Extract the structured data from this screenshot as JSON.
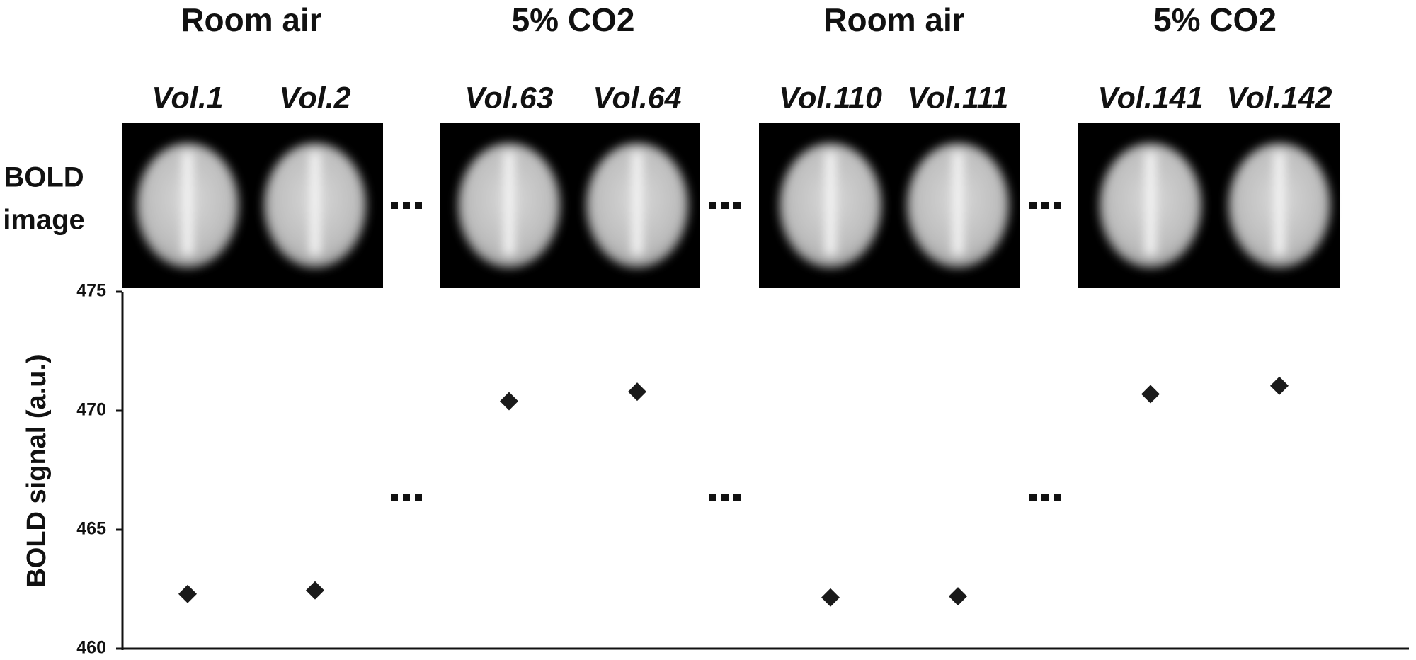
{
  "chart_data": {
    "type": "scatter",
    "groups": [
      "Room air",
      "5% CO2",
      "Room air",
      "5% CO2"
    ],
    "row_label": [
      "BOLD",
      "image"
    ],
    "categories": [
      "Vol.1",
      "Vol.2",
      "Vol.63",
      "Vol.64",
      "Vol.110",
      "Vol.111",
      "Vol.141",
      "Vol.142"
    ],
    "values": [
      462.3,
      462.45,
      470.4,
      470.8,
      462.15,
      462.2,
      470.7,
      471.05
    ],
    "color": "#1a1a1a",
    "y_label": "BOLD signal (a.u.)",
    "ylim": [
      460,
      475
    ],
    "yticks": [
      460,
      465,
      470,
      475
    ]
  }
}
